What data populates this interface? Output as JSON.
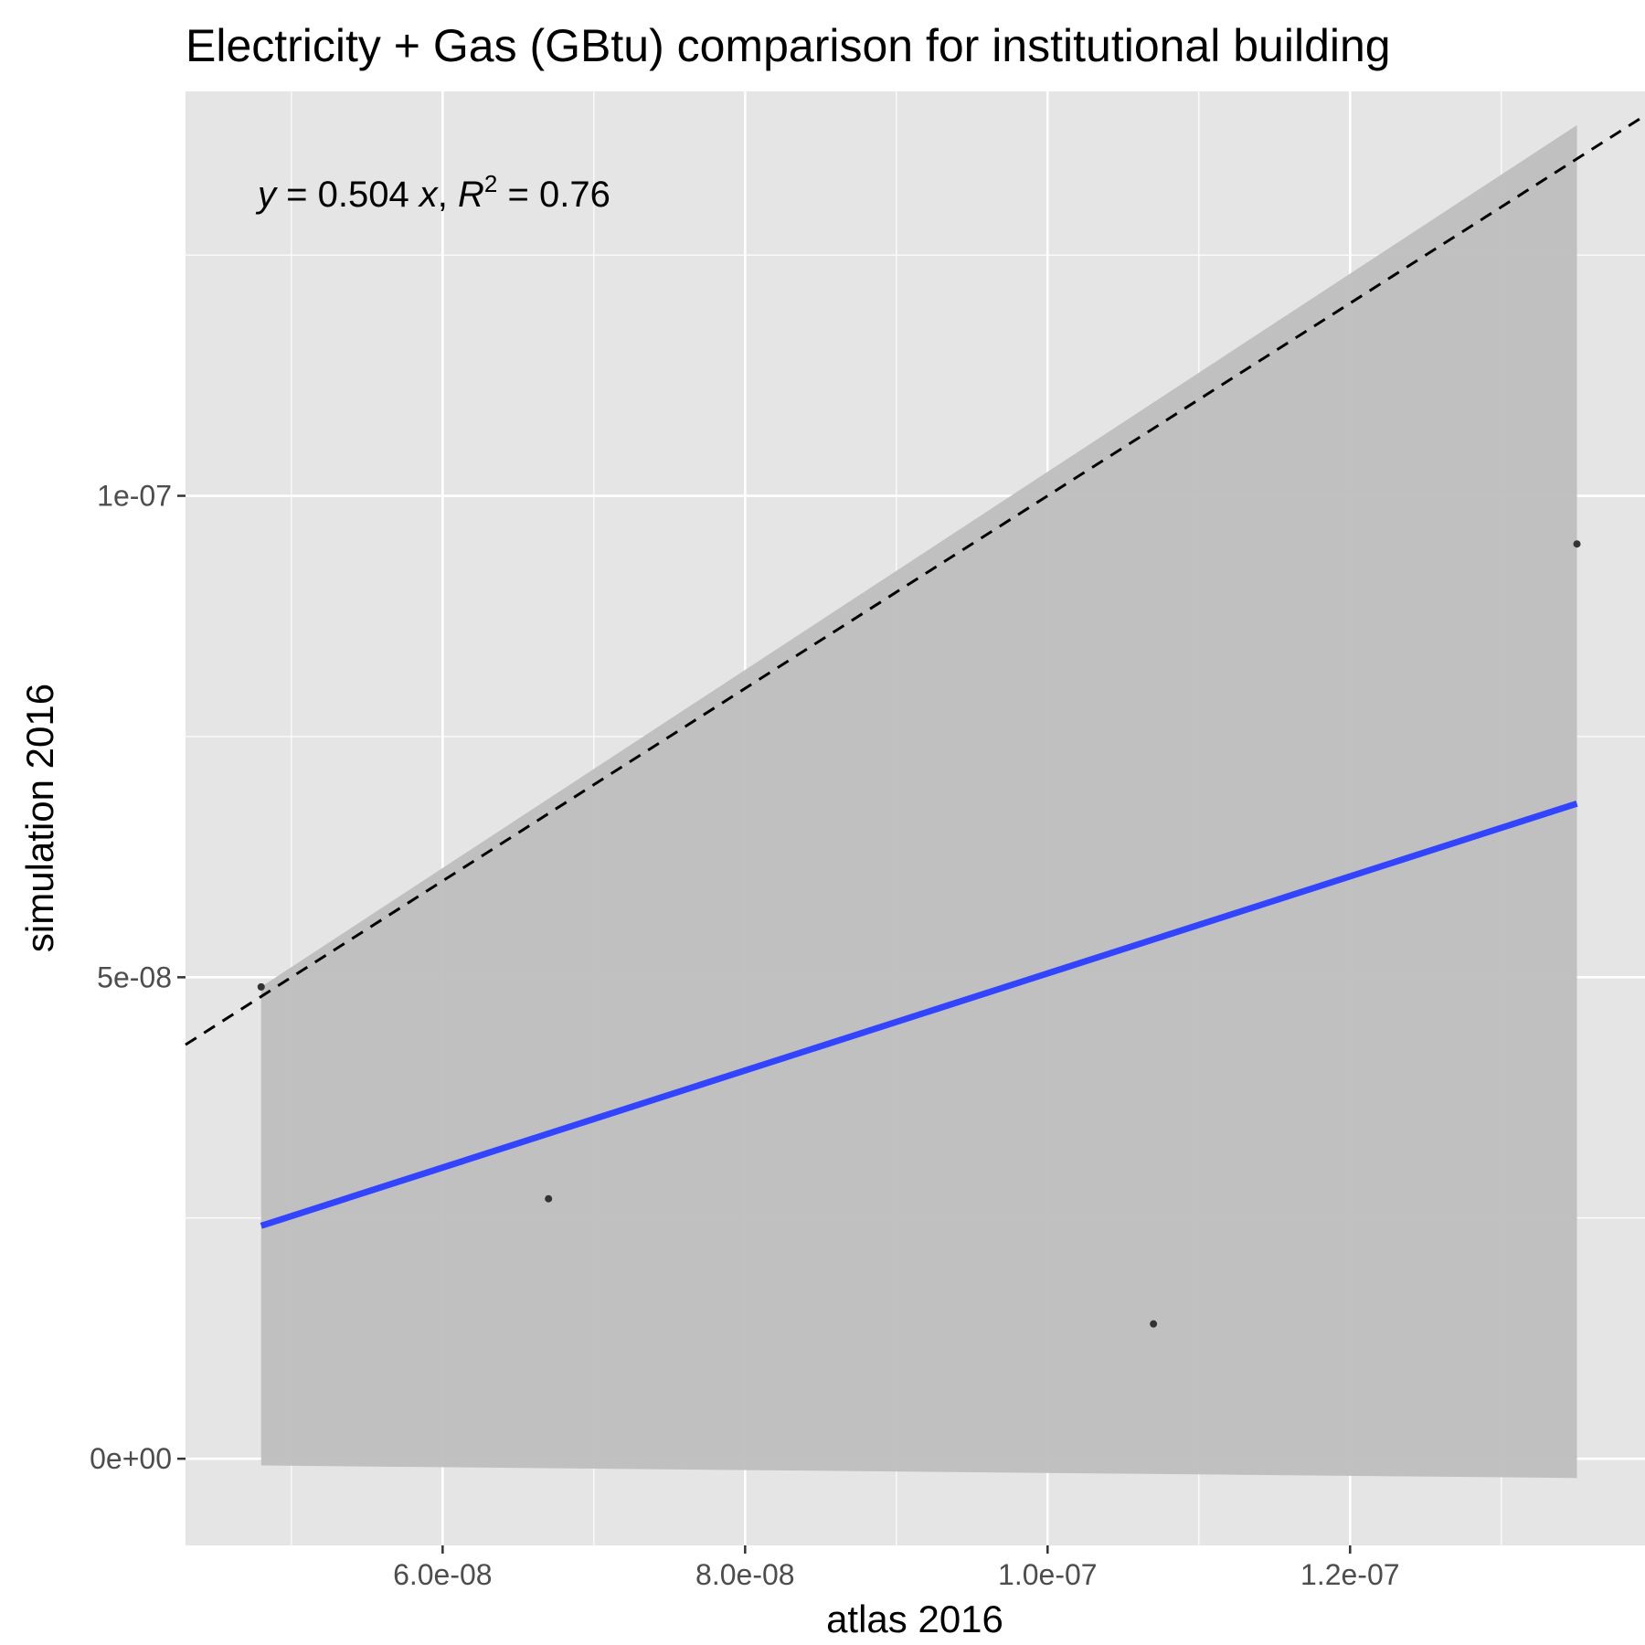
{
  "chart_data": {
    "type": "scatter",
    "title": "Electricity + Gas (GBtu) comparison for institutional building",
    "xlabel": "atlas 2016",
    "ylabel": "simulation 2016",
    "xlim": [
      4.3e-08,
      1.395e-07
    ],
    "ylim": [
      -9e-09,
      1.42e-07
    ],
    "x_ticks": [
      6e-08,
      8e-08,
      1e-07,
      1.2e-07
    ],
    "x_tick_labels": [
      "6.0e-08",
      "8.0e-08",
      "1.0e-07",
      "1.2e-07"
    ],
    "y_ticks": [
      0,
      5e-08,
      1e-07
    ],
    "y_tick_labels": [
      "0e+00",
      "5e-08",
      "1e-07"
    ],
    "grid": true,
    "points": {
      "x": [
        4.8e-08,
        6.7e-08,
        1.07e-07,
        1.35e-07
      ],
      "y": [
        4.9e-08,
        2.7e-08,
        1.4e-08,
        9.5e-08
      ],
      "color": "#333333"
    },
    "fit": {
      "slope": 0.504,
      "x_range": [
        4.8e-08,
        1.35e-07
      ],
      "color": "#3344ff"
    },
    "confidence_band": {
      "x": [
        4.8e-08,
        1.35e-07
      ],
      "upper": [
        4.9e-08,
        1.385e-07
      ],
      "lower": [
        -7e-10,
        -2e-09
      ],
      "color": "#bebebe"
    },
    "reference_line": {
      "style": "dashed",
      "slope": 1,
      "color": "#000000"
    },
    "annotation": {
      "y_var": "y",
      "eq_mid": " = 0.504 ",
      "x_var": "x",
      "comma": ", ",
      "r_var": "R",
      "sup": "2",
      "r_value": " = 0.76"
    },
    "colors": {
      "panel": "#e5e5e5",
      "grid": "#ffffff"
    }
  }
}
